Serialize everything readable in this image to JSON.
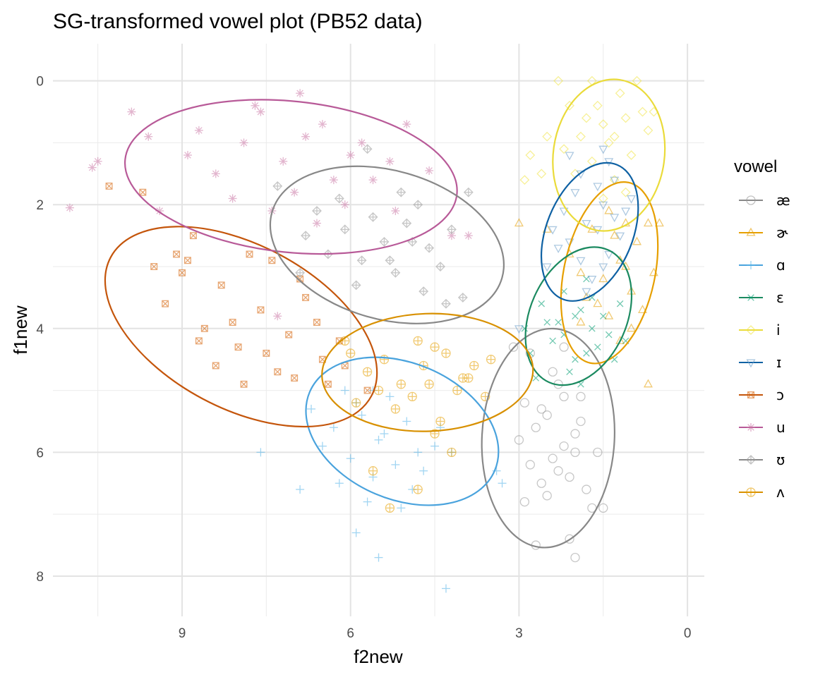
{
  "chart_data": {
    "type": "scatter",
    "title": "SG-transformed vowel plot (PB52 data)",
    "xlabel": "f2new",
    "ylabel": "f1new",
    "xlim": [
      11.3,
      -0.3
    ],
    "ylim": [
      8.65,
      -0.6
    ],
    "x_reversed": true,
    "y_reversed": true,
    "x_ticks": [
      9,
      6,
      3,
      0
    ],
    "y_ticks": [
      0,
      2,
      4,
      6,
      8
    ],
    "grid": true,
    "legend": {
      "title": "vowel",
      "position": "right"
    },
    "series": [
      {
        "name": "æ",
        "shape": "circle",
        "color": "#999999",
        "ellipse_color": "#888888",
        "ellipse": {
          "cx": 2.48,
          "cy": 5.77,
          "rx": 1.18,
          "ry": 1.77,
          "angle": 3
        },
        "points": [
          [
            2.6,
            5.3
          ],
          [
            2.2,
            5.9
          ],
          [
            2.8,
            6.2
          ],
          [
            2.1,
            6.4
          ],
          [
            2.5,
            6.7
          ],
          [
            1.9,
            5.5
          ],
          [
            2.3,
            4.9
          ],
          [
            2.7,
            5.6
          ],
          [
            2.0,
            6.0
          ],
          [
            2.4,
            6.1
          ],
          [
            2.9,
            5.2
          ],
          [
            1.8,
            6.6
          ],
          [
            2.2,
            5.1
          ],
          [
            2.6,
            6.5
          ],
          [
            2.0,
            5.7
          ],
          [
            3.0,
            5.8
          ],
          [
            1.7,
            6.9
          ],
          [
            2.4,
            4.7
          ],
          [
            2.1,
            7.4
          ],
          [
            2.0,
            7.7
          ],
          [
            2.7,
            7.5
          ],
          [
            1.5,
            6.9
          ],
          [
            2.5,
            5.4
          ],
          [
            2.3,
            6.3
          ],
          [
            2.8,
            4.4
          ],
          [
            2.2,
            4.3
          ],
          [
            3.1,
            4.3
          ],
          [
            1.6,
            6.0
          ],
          [
            2.9,
            6.8
          ],
          [
            1.9,
            5.1
          ]
        ]
      },
      {
        "name": "ɚ",
        "shape": "triangle",
        "color": "#E69F00",
        "ellipse_color": "#E69F00",
        "ellipse": {
          "cx": 1.39,
          "cy": 3.1,
          "rx": 0.81,
          "ry": 1.49,
          "angle": 12
        },
        "points": [
          [
            1.2,
            2.9
          ],
          [
            1.0,
            3.4
          ],
          [
            1.6,
            3.6
          ],
          [
            0.9,
            2.6
          ],
          [
            1.4,
            3.8
          ],
          [
            1.1,
            2.3
          ],
          [
            0.7,
            2.3
          ],
          [
            0.6,
            3.1
          ],
          [
            1.5,
            3.2
          ],
          [
            1.8,
            3.5
          ],
          [
            1.3,
            2.5
          ],
          [
            0.8,
            3.7
          ],
          [
            1.9,
            3.1
          ],
          [
            1.0,
            4.0
          ],
          [
            2.1,
            2.8
          ],
          [
            1.7,
            2.4
          ],
          [
            0.5,
            2.3
          ],
          [
            0.7,
            4.9
          ],
          [
            1.2,
            4.2
          ],
          [
            3.0,
            2.3
          ],
          [
            2.5,
            2.4
          ],
          [
            1.4,
            2.1
          ],
          [
            1.9,
            3.9
          ],
          [
            1.1,
            3.0
          ]
        ]
      },
      {
        "name": "ɑ",
        "shape": "plus",
        "color": "#56B4E9",
        "ellipse_color": "#4AA3DD",
        "ellipse": {
          "cx": 5.08,
          "cy": 5.66,
          "rx": 1.79,
          "ry": 1.1,
          "angle": 23
        },
        "points": [
          [
            5.5,
            5.8
          ],
          [
            4.8,
            6.0
          ],
          [
            5.8,
            5.4
          ],
          [
            6.3,
            5.6
          ],
          [
            5.2,
            6.2
          ],
          [
            4.5,
            5.9
          ],
          [
            6.0,
            6.1
          ],
          [
            5.0,
            5.5
          ],
          [
            5.6,
            6.4
          ],
          [
            4.9,
            6.6
          ],
          [
            6.5,
            5.9
          ],
          [
            4.2,
            6.0
          ],
          [
            5.3,
            5.1
          ],
          [
            5.9,
            5.2
          ],
          [
            6.2,
            6.5
          ],
          [
            5.1,
            6.9
          ],
          [
            4.7,
            6.3
          ],
          [
            5.7,
            6.8
          ],
          [
            4.4,
            5.6
          ],
          [
            5.4,
            5.7
          ],
          [
            6.7,
            5.3
          ],
          [
            7.6,
            6.0
          ],
          [
            6.9,
            6.6
          ],
          [
            5.9,
            7.3
          ],
          [
            5.5,
            7.7
          ],
          [
            4.3,
            8.2
          ],
          [
            3.3,
            6.5
          ],
          [
            3.4,
            6.3
          ],
          [
            6.1,
            5.0
          ],
          [
            5.6,
            5.0
          ]
        ]
      },
      {
        "name": "ɛ",
        "shape": "x",
        "color": "#009E73",
        "ellipse_color": "#1B8A60",
        "ellipse": {
          "cx": 1.94,
          "cy": 3.8,
          "rx": 0.86,
          "ry": 1.17,
          "angle": 24
        },
        "points": [
          [
            1.9,
            3.7
          ],
          [
            2.2,
            3.4
          ],
          [
            1.7,
            4.0
          ],
          [
            2.4,
            4.2
          ],
          [
            1.5,
            3.8
          ],
          [
            2.0,
            4.5
          ],
          [
            1.8,
            3.2
          ],
          [
            2.3,
            3.9
          ],
          [
            1.6,
            4.3
          ],
          [
            2.6,
            3.6
          ],
          [
            1.4,
            4.1
          ],
          [
            2.1,
            4.7
          ],
          [
            2.8,
            4.4
          ],
          [
            1.2,
            3.6
          ],
          [
            1.9,
            4.9
          ],
          [
            2.5,
            3.9
          ],
          [
            1.3,
            4.5
          ],
          [
            2.7,
            4.8
          ],
          [
            1.7,
            3.5
          ],
          [
            2.2,
            4.1
          ],
          [
            2.0,
            3.8
          ],
          [
            1.1,
            4.2
          ],
          [
            2.9,
            4.0
          ],
          [
            1.8,
            4.4
          ]
        ]
      },
      {
        "name": "i",
        "shape": "diamond",
        "color": "#F0E442",
        "ellipse_color": "#EADB3A",
        "ellipse": {
          "cx": 1.4,
          "cy": 1.2,
          "rx": 0.99,
          "ry": 1.23,
          "angle": 8
        },
        "points": [
          [
            1.4,
            1.0
          ],
          [
            1.1,
            0.6
          ],
          [
            1.7,
            1.3
          ],
          [
            0.8,
            0.5
          ],
          [
            1.3,
            1.6
          ],
          [
            1.9,
            0.9
          ],
          [
            1.0,
            1.2
          ],
          [
            1.6,
            0.4
          ],
          [
            1.2,
            0.2
          ],
          [
            0.9,
            0.0
          ],
          [
            1.5,
            0.7
          ],
          [
            2.0,
            1.5
          ],
          [
            1.8,
            0.6
          ],
          [
            1.3,
            0.9
          ],
          [
            0.7,
            0.8
          ],
          [
            2.2,
            1.1
          ],
          [
            2.5,
            0.9
          ],
          [
            2.6,
            1.5
          ],
          [
            2.8,
            1.2
          ],
          [
            2.9,
            1.6
          ],
          [
            1.7,
            0.0
          ],
          [
            2.3,
            0.0
          ],
          [
            0.6,
            0.5
          ],
          [
            1.1,
            1.8
          ],
          [
            2.1,
            0.4
          ],
          [
            1.5,
            1.9
          ]
        ]
      },
      {
        "name": "ɪ",
        "shape": "triangle-down",
        "color": "#6A9CC8",
        "ellipse_color": "#0E61A3",
        "ellipse": {
          "cx": 1.74,
          "cy": 2.44,
          "rx": 0.77,
          "ry": 1.17,
          "angle": 22
        },
        "points": [
          [
            1.8,
            2.3
          ],
          [
            1.5,
            2.0
          ],
          [
            2.1,
            2.6
          ],
          [
            1.3,
            2.2
          ],
          [
            1.9,
            2.9
          ],
          [
            1.6,
            1.7
          ],
          [
            1.2,
            2.5
          ],
          [
            2.2,
            2.1
          ],
          [
            1.7,
            3.2
          ],
          [
            1.4,
            2.8
          ],
          [
            2.0,
            1.8
          ],
          [
            1.1,
            2.1
          ],
          [
            2.3,
            2.7
          ],
          [
            1.5,
            3.0
          ],
          [
            1.9,
            1.5
          ],
          [
            1.4,
            1.3
          ],
          [
            1.6,
            2.4
          ],
          [
            2.4,
            2.4
          ],
          [
            1.0,
            1.9
          ],
          [
            1.8,
            3.4
          ],
          [
            1.5,
            1.1
          ],
          [
            2.1,
            1.2
          ],
          [
            3.0,
            4.0
          ],
          [
            2.5,
            3.0
          ],
          [
            1.3,
            1.6
          ]
        ]
      },
      {
        "name": "ɔ",
        "shape": "square-x",
        "color": "#D55E00",
        "ellipse_color": "#C4550B",
        "ellipse": {
          "cx": 7.95,
          "cy": 3.97,
          "rx": 2.63,
          "ry": 1.32,
          "angle": 28
        },
        "points": [
          [
            8.3,
            3.3
          ],
          [
            7.6,
            3.7
          ],
          [
            8.9,
            2.9
          ],
          [
            7.1,
            4.1
          ],
          [
            8.0,
            4.3
          ],
          [
            9.3,
            3.6
          ],
          [
            6.8,
            3.5
          ],
          [
            7.8,
            2.8
          ],
          [
            8.6,
            4.0
          ],
          [
            6.5,
            4.5
          ],
          [
            7.3,
            4.7
          ],
          [
            9.0,
            3.1
          ],
          [
            6.2,
            4.2
          ],
          [
            8.1,
            3.9
          ],
          [
            7.0,
            4.8
          ],
          [
            9.5,
            3.0
          ],
          [
            6.6,
            3.9
          ],
          [
            7.9,
            4.9
          ],
          [
            8.8,
            2.5
          ],
          [
            6.9,
            3.2
          ],
          [
            7.5,
            4.4
          ],
          [
            6.4,
            4.9
          ],
          [
            8.4,
            4.6
          ],
          [
            10.3,
            1.7
          ],
          [
            9.7,
            1.8
          ],
          [
            9.1,
            2.8
          ],
          [
            5.7,
            5.0
          ],
          [
            6.1,
            4.6
          ],
          [
            7.4,
            2.9
          ],
          [
            8.7,
            4.2
          ]
        ]
      },
      {
        "name": "u",
        "shape": "asterisk",
        "color": "#CC79A7",
        "ellipse_color": "#B85A98",
        "ellipse": {
          "cx": 7.06,
          "cy": 1.55,
          "rx": 2.97,
          "ry": 1.22,
          "angle": 6
        },
        "points": [
          [
            7.2,
            1.3
          ],
          [
            6.8,
            0.9
          ],
          [
            7.9,
            1.0
          ],
          [
            6.3,
            1.6
          ],
          [
            8.4,
            1.5
          ],
          [
            7.6,
            0.5
          ],
          [
            6.0,
            1.2
          ],
          [
            8.7,
            0.8
          ],
          [
            7.0,
            1.8
          ],
          [
            5.6,
            1.6
          ],
          [
            8.1,
            1.9
          ],
          [
            6.5,
            0.7
          ],
          [
            7.4,
            2.1
          ],
          [
            5.3,
            1.3
          ],
          [
            8.9,
            1.2
          ],
          [
            6.1,
            2.0
          ],
          [
            7.7,
            0.4
          ],
          [
            5.0,
            0.7
          ],
          [
            6.9,
            0.2
          ],
          [
            9.9,
            0.5
          ],
          [
            9.6,
            0.9
          ],
          [
            10.5,
            1.3
          ],
          [
            10.6,
            1.4
          ],
          [
            11.0,
            2.05
          ],
          [
            9.4,
            2.1
          ],
          [
            4.6,
            1.45
          ],
          [
            5.8,
            1.0
          ],
          [
            3.9,
            2.5
          ],
          [
            4.2,
            2.5
          ],
          [
            7.3,
            3.8
          ],
          [
            5.2,
            2.1
          ],
          [
            6.6,
            2.3
          ]
        ]
      },
      {
        "name": "ʊ",
        "shape": "diamond-plus",
        "color": "#999999",
        "ellipse_color": "#888888",
        "ellipse": {
          "cx": 5.35,
          "cy": 2.65,
          "rx": 2.13,
          "ry": 1.2,
          "angle": 16
        },
        "points": [
          [
            5.4,
            2.6
          ],
          [
            5.0,
            2.3
          ],
          [
            5.8,
            2.9
          ],
          [
            4.6,
            2.7
          ],
          [
            6.1,
            2.4
          ],
          [
            5.2,
            3.1
          ],
          [
            4.8,
            2.0
          ],
          [
            6.4,
            2.8
          ],
          [
            5.6,
            2.2
          ],
          [
            4.4,
            3.0
          ],
          [
            5.9,
            3.3
          ],
          [
            6.6,
            2.1
          ],
          [
            5.1,
            1.8
          ],
          [
            4.2,
            2.4
          ],
          [
            6.8,
            2.5
          ],
          [
            5.3,
            2.9
          ],
          [
            4.7,
            3.4
          ],
          [
            6.2,
            1.9
          ],
          [
            5.7,
            1.1
          ],
          [
            3.9,
            1.8
          ],
          [
            7.3,
            1.7
          ],
          [
            4.0,
            3.5
          ],
          [
            4.3,
            3.6
          ],
          [
            6.9,
            3.1
          ],
          [
            4.9,
            2.6
          ]
        ]
      },
      {
        "name": "ʌ",
        "shape": "circle-plus",
        "color": "#E69F00",
        "ellipse_color": "#D89000",
        "ellipse": {
          "cx": 4.63,
          "cy": 4.71,
          "rx": 1.88,
          "ry": 0.95,
          "angle": -2
        },
        "points": [
          [
            4.7,
            4.6
          ],
          [
            5.1,
            4.9
          ],
          [
            4.3,
            4.4
          ],
          [
            5.4,
            4.5
          ],
          [
            4.0,
            4.8
          ],
          [
            4.9,
            5.1
          ],
          [
            5.7,
            4.7
          ],
          [
            4.5,
            4.3
          ],
          [
            5.2,
            5.3
          ],
          [
            3.8,
            4.6
          ],
          [
            6.0,
            4.4
          ],
          [
            4.1,
            5.0
          ],
          [
            4.8,
            4.2
          ],
          [
            5.5,
            5.0
          ],
          [
            4.4,
            5.5
          ],
          [
            3.6,
            5.1
          ],
          [
            5.9,
            5.2
          ],
          [
            4.6,
            4.9
          ],
          [
            6.1,
            4.2
          ],
          [
            3.5,
            4.5
          ],
          [
            5.6,
            6.3
          ],
          [
            4.8,
            6.6
          ],
          [
            5.3,
            6.9
          ],
          [
            4.2,
            6.0
          ],
          [
            3.9,
            4.8
          ],
          [
            4.5,
            5.7
          ]
        ]
      }
    ]
  }
}
